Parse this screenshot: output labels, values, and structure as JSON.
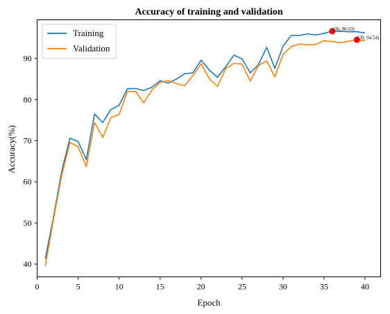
{
  "chart_data": {
    "type": "line",
    "title": "Accuracy of training and validation",
    "xlabel": "Epoch",
    "ylabel": "Accuracy(%)",
    "xlim": [
      0.0,
      41.9
    ],
    "ylim": [
      36.9,
      99.4
    ],
    "xticks": [
      0,
      5,
      10,
      15,
      20,
      25,
      30,
      35,
      40
    ],
    "yticks": [
      40,
      50,
      60,
      70,
      80,
      90
    ],
    "grid": false,
    "legend_position": "top-left",
    "x": [
      1,
      2,
      3,
      4,
      5,
      6,
      7,
      8,
      9,
      10,
      11,
      12,
      13,
      14,
      15,
      16,
      17,
      18,
      19,
      20,
      21,
      22,
      23,
      24,
      25,
      26,
      27,
      28,
      29,
      30,
      31,
      32,
      33,
      34,
      35,
      36,
      37,
      38,
      39,
      40
    ],
    "series": [
      {
        "name": "Training",
        "color": "#1f77b4",
        "values": [
          41.3,
          51.5,
          62.6,
          70.6,
          69.8,
          65.4,
          76.5,
          74.4,
          77.6,
          78.6,
          82.6,
          82.7,
          82.2,
          83.0,
          84.6,
          84.0,
          85.0,
          86.3,
          86.5,
          89.6,
          87.2,
          85.4,
          88.0,
          90.8,
          89.9,
          86.5,
          88.5,
          92.7,
          87.6,
          93.0,
          95.6,
          95.6,
          96.0,
          95.7,
          96.1,
          96.63,
          96.6,
          96.5,
          96.5,
          96.2
        ]
      },
      {
        "name": "Validation",
        "color": "#ff7f0e",
        "values": [
          39.6,
          51.0,
          61.6,
          69.6,
          68.5,
          63.7,
          74.4,
          70.8,
          75.6,
          76.4,
          81.9,
          82.0,
          79.2,
          82.3,
          84.2,
          84.6,
          83.9,
          83.4,
          85.8,
          88.7,
          85.1,
          83.2,
          87.5,
          88.8,
          88.6,
          84.5,
          88.3,
          89.4,
          85.5,
          91.0,
          92.9,
          93.5,
          93.3,
          93.4,
          94.3,
          94.1,
          93.8,
          94.2,
          94.54,
          94.3
        ]
      }
    ],
    "annotations": [
      {
        "text": "(36, 96.63)",
        "x": 36,
        "y": 96.63,
        "marker_color": "#ff0000"
      },
      {
        "text": "(39, 94.54)",
        "x": 39,
        "y": 94.54,
        "marker_color": "#ff0000"
      }
    ]
  }
}
